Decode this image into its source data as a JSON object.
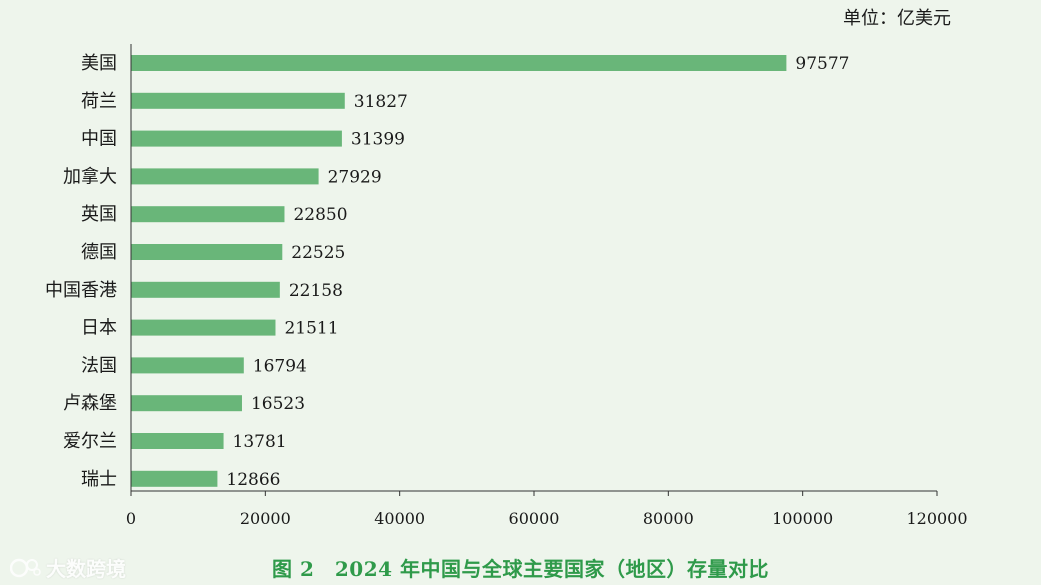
{
  "chart_data": {
    "type": "bar",
    "orientation": "horizontal",
    "unit_label": "单位：亿美元",
    "caption": "图 2　2024 年中国与全球主要国家（地区）存量对比",
    "categories": [
      "美国",
      "荷兰",
      "中国",
      "加拿大",
      "英国",
      "德国",
      "中国香港",
      "日本",
      "法国",
      "卢森堡",
      "爱尔兰",
      "瑞士"
    ],
    "values": [
      97577,
      31827,
      31399,
      27929,
      22850,
      22525,
      22158,
      21511,
      16794,
      16523,
      13781,
      12866
    ],
    "xlim": [
      0,
      120000
    ],
    "xticks": [
      0,
      20000,
      40000,
      60000,
      80000,
      100000,
      120000
    ],
    "bar_color": "#69b679",
    "grid": false
  },
  "watermark": {
    "text": "大数跨境",
    "icon": "brand-logo-icon"
  }
}
